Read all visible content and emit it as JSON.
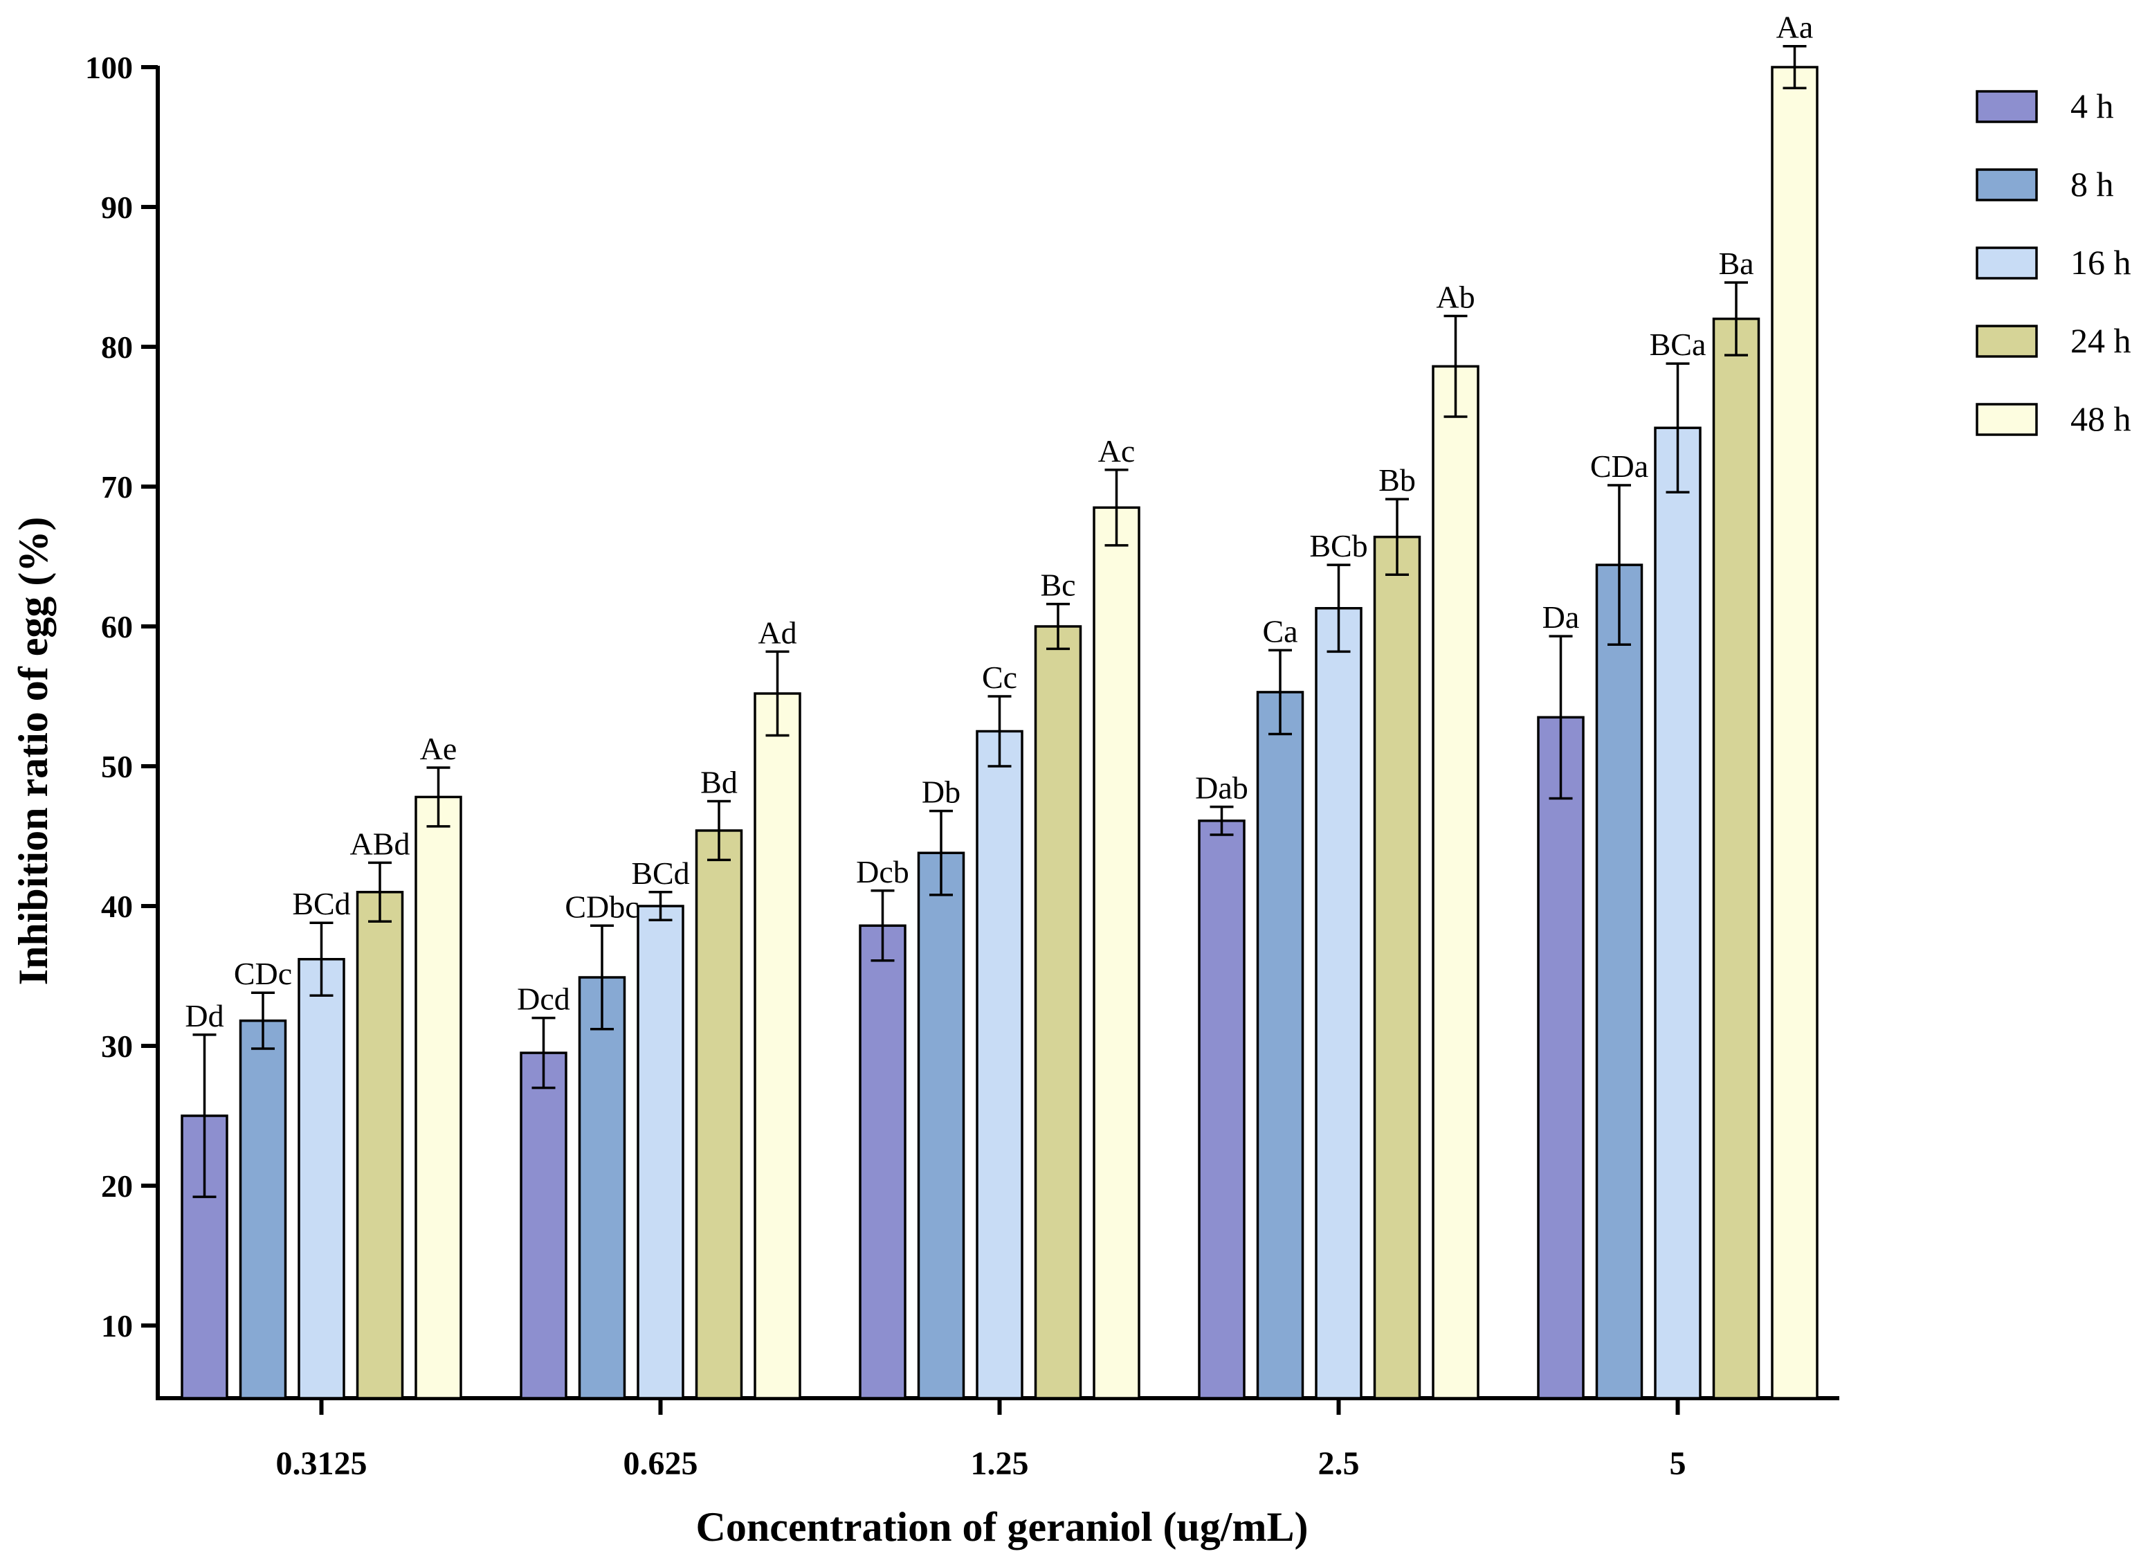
{
  "chart_data": {
    "type": "bar",
    "title": "",
    "xlabel": "Concentration of geraniol (ug/mL)",
    "ylabel": "Inhibition ratio of egg (%)",
    "ylim": [
      5,
      100
    ],
    "yticks": [
      10,
      20,
      30,
      40,
      50,
      60,
      70,
      80,
      90,
      100
    ],
    "categories": [
      "0.3125",
      "0.625",
      "1.25",
      "2.5",
      "5"
    ],
    "legend_position": "right",
    "series": [
      {
        "name": "4 h",
        "color": "#8d8fcf",
        "values": [
          25.0,
          29.5,
          38.6,
          46.1,
          53.5
        ],
        "errors": [
          5.8,
          2.5,
          2.5,
          1.0,
          5.8
        ],
        "labels": [
          "Dd",
          "Dcd",
          "Dcb",
          "Dab",
          "Da"
        ]
      },
      {
        "name": "8 h",
        "color": "#87a9d3",
        "values": [
          31.8,
          34.9,
          43.8,
          55.3,
          64.4
        ],
        "errors": [
          2.0,
          3.7,
          3.0,
          3.0,
          5.7
        ],
        "labels": [
          "CDc",
          "CDbc",
          "Db",
          "Ca",
          "CDa"
        ]
      },
      {
        "name": "16 h",
        "color": "#c8dcf5",
        "values": [
          36.2,
          40.0,
          52.5,
          61.3,
          74.2
        ],
        "errors": [
          2.6,
          1.0,
          2.5,
          3.1,
          4.6
        ],
        "labels": [
          "BCd",
          "BCd",
          "Cc",
          "BCb",
          "BCa"
        ]
      },
      {
        "name": "24 h",
        "color": "#d6d497",
        "values": [
          41.0,
          45.4,
          60.0,
          66.4,
          82.0
        ],
        "errors": [
          2.1,
          2.1,
          1.6,
          2.7,
          2.6
        ],
        "labels": [
          "ABd",
          "Bd",
          "Bc",
          "Bb",
          "Ba"
        ]
      },
      {
        "name": "48 h",
        "color": "#fdfde0",
        "values": [
          47.8,
          55.2,
          68.5,
          78.6,
          100.0
        ],
        "errors": [
          2.1,
          3.0,
          2.7,
          3.6,
          1.5
        ],
        "labels": [
          "Ae",
          "Ad",
          "Ac",
          "Ab",
          "Aa"
        ]
      }
    ]
  }
}
